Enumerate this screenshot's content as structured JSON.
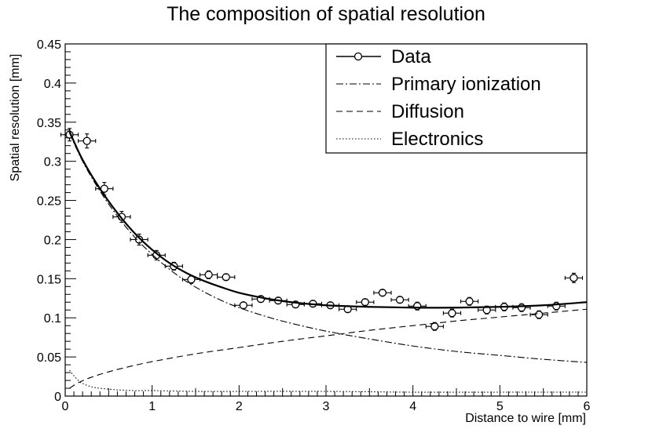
{
  "chart_data": {
    "type": "line",
    "title": "The composition of spatial resolution",
    "xlabel": "Distance to wire [mm]",
    "ylabel": "Spatial resolution [mm]",
    "xlim": [
      0,
      6
    ],
    "ylim": [
      0,
      0.45
    ],
    "x_ticks": [
      "0",
      "1",
      "2",
      "3",
      "4",
      "5",
      "6"
    ],
    "y_ticks": [
      "0",
      "0.05",
      "0.1",
      "0.15",
      "0.2",
      "0.25",
      "0.3",
      "0.35",
      "0.4",
      "0.45"
    ],
    "grid": false,
    "legend_position": "top-right",
    "legend": [
      "Data",
      "Primary ionization",
      "Diffusion",
      "Electronics"
    ],
    "data_points": {
      "name": "Data",
      "x_err": 0.1,
      "points": [
        {
          "x": 0.05,
          "y": 0.334,
          "ey": 0.008
        },
        {
          "x": 0.25,
          "y": 0.326,
          "ey": 0.009
        },
        {
          "x": 0.45,
          "y": 0.265,
          "ey": 0.008
        },
        {
          "x": 0.65,
          "y": 0.229,
          "ey": 0.007
        },
        {
          "x": 0.85,
          "y": 0.2,
          "ey": 0.007
        },
        {
          "x": 1.05,
          "y": 0.18,
          "ey": 0.006
        },
        {
          "x": 1.25,
          "y": 0.166,
          "ey": 0.005
        },
        {
          "x": 1.45,
          "y": 0.149,
          "ey": 0.005
        },
        {
          "x": 1.65,
          "y": 0.155,
          "ey": 0.005
        },
        {
          "x": 1.85,
          "y": 0.152,
          "ey": 0.004
        },
        {
          "x": 2.05,
          "y": 0.116,
          "ey": 0.004
        },
        {
          "x": 2.25,
          "y": 0.124,
          "ey": 0.004
        },
        {
          "x": 2.45,
          "y": 0.122,
          "ey": 0.004
        },
        {
          "x": 2.65,
          "y": 0.117,
          "ey": 0.004
        },
        {
          "x": 2.85,
          "y": 0.118,
          "ey": 0.004
        },
        {
          "x": 3.05,
          "y": 0.116,
          "ey": 0.004
        },
        {
          "x": 3.25,
          "y": 0.111,
          "ey": 0.004
        },
        {
          "x": 3.45,
          "y": 0.12,
          "ey": 0.004
        },
        {
          "x": 3.65,
          "y": 0.132,
          "ey": 0.004
        },
        {
          "x": 3.85,
          "y": 0.123,
          "ey": 0.004
        },
        {
          "x": 4.05,
          "y": 0.115,
          "ey": 0.005
        },
        {
          "x": 4.25,
          "y": 0.089,
          "ey": 0.005
        },
        {
          "x": 4.45,
          "y": 0.106,
          "ey": 0.005
        },
        {
          "x": 4.65,
          "y": 0.121,
          "ey": 0.005
        },
        {
          "x": 4.85,
          "y": 0.11,
          "ey": 0.005
        },
        {
          "x": 5.05,
          "y": 0.114,
          "ey": 0.005
        },
        {
          "x": 5.25,
          "y": 0.113,
          "ey": 0.005
        },
        {
          "x": 5.45,
          "y": 0.104,
          "ey": 0.005
        },
        {
          "x": 5.65,
          "y": 0.115,
          "ey": 0.005
        },
        {
          "x": 5.85,
          "y": 0.151,
          "ey": 0.006
        }
      ]
    },
    "curves": [
      {
        "name": "Data",
        "style": "solid",
        "x": [
          0.05,
          0.2,
          0.4,
          0.6,
          0.8,
          1.0,
          1.2,
          1.4,
          1.6,
          1.8,
          2.0,
          2.3,
          2.6,
          3.0,
          3.5,
          4.0,
          4.5,
          5.0,
          5.5,
          6.0
        ],
        "y": [
          0.338,
          0.302,
          0.265,
          0.234,
          0.208,
          0.187,
          0.17,
          0.157,
          0.147,
          0.139,
          0.132,
          0.125,
          0.12,
          0.116,
          0.114,
          0.113,
          0.113,
          0.114,
          0.116,
          0.12
        ]
      },
      {
        "name": "Primary ionization",
        "style": "dashdot",
        "x": [
          0.05,
          0.2,
          0.4,
          0.6,
          0.8,
          1.0,
          1.2,
          1.4,
          1.6,
          1.8,
          2.0,
          2.3,
          2.6,
          3.0,
          3.5,
          4.0,
          4.5,
          5.0,
          5.5,
          6.0
        ],
        "y": [
          0.336,
          0.3,
          0.262,
          0.23,
          0.203,
          0.181,
          0.162,
          0.146,
          0.133,
          0.122,
          0.113,
          0.102,
          0.093,
          0.083,
          0.073,
          0.064,
          0.057,
          0.052,
          0.047,
          0.043
        ]
      },
      {
        "name": "Diffusion",
        "style": "dashed",
        "x": [
          0.05,
          0.15,
          0.3,
          0.5,
          0.75,
          1.0,
          1.5,
          2.0,
          2.5,
          3.0,
          3.5,
          4.0,
          4.5,
          5.0,
          5.5,
          6.0
        ],
        "y": [
          0.01,
          0.017,
          0.024,
          0.031,
          0.038,
          0.044,
          0.054,
          0.062,
          0.07,
          0.077,
          0.084,
          0.09,
          0.096,
          0.101,
          0.106,
          0.111
        ]
      },
      {
        "name": "Electronics",
        "style": "dotted",
        "x": [
          0.05,
          0.1,
          0.15,
          0.2,
          0.3,
          0.4,
          0.6,
          0.8,
          1.0,
          1.5,
          2.0,
          3.0,
          4.0,
          5.0,
          6.0
        ],
        "y": [
          0.033,
          0.026,
          0.02,
          0.016,
          0.012,
          0.01,
          0.008,
          0.007,
          0.007,
          0.006,
          0.006,
          0.006,
          0.005,
          0.005,
          0.005
        ]
      }
    ]
  }
}
